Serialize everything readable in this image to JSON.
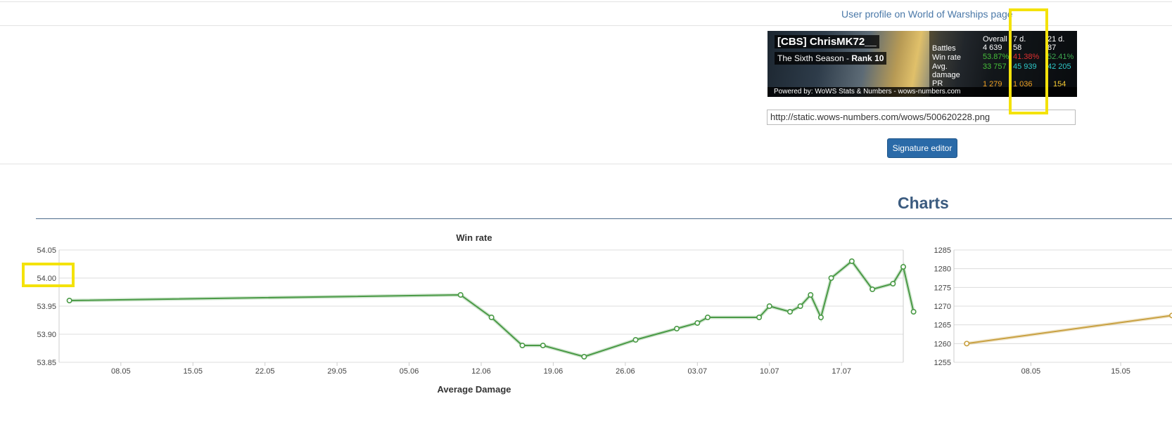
{
  "profile_link": "User profile on World of Warships page",
  "signature": {
    "player_name": "[CBS] ChrisMK72__",
    "season_prefix": "The Sixth Season - ",
    "season_rank": "Rank 10",
    "powered_by": "Powered by: WoWS Stats & Numbers - wows-numbers.com",
    "columns": [
      "Overall",
      "7 d.",
      "21 d."
    ],
    "rows": [
      {
        "label": "Battles",
        "values": [
          "4 639",
          "58",
          "87"
        ]
      },
      {
        "label": "Win rate",
        "values": [
          "53.87%",
          "41.38%",
          "52.41%"
        ]
      },
      {
        "label": "Avg.",
        "label2": "damage",
        "values": [
          "33 757",
          "45 939",
          "42 205"
        ]
      },
      {
        "label": "PR",
        "values": [
          "1 279",
          "1 036",
          "154"
        ]
      }
    ]
  },
  "signature_url": "http://static.wows-numbers.com/wows/500620228.png",
  "signature_editor_label": "Signature editor",
  "charts_heading": "Charts",
  "next_chart_title": "Average Damage",
  "chart_data": [
    {
      "type": "line",
      "title": "Win rate",
      "xlabel": "",
      "ylabel": "",
      "ylim": [
        53.85,
        54.05
      ],
      "yticks": [
        "53.85",
        "53.90",
        "53.95",
        "54.00",
        "54.05"
      ],
      "xlim": [
        "2016-05-02",
        "2016-07-23"
      ],
      "xticks": [
        {
          "date": "2016-05-08",
          "label": "08.05"
        },
        {
          "date": "2016-05-15",
          "label": "15.05"
        },
        {
          "date": "2016-05-22",
          "label": "22.05"
        },
        {
          "date": "2016-05-29",
          "label": "29.05"
        },
        {
          "date": "2016-06-05",
          "label": "05.06"
        },
        {
          "date": "2016-06-12",
          "label": "12.06"
        },
        {
          "date": "2016-06-19",
          "label": "19.06"
        },
        {
          "date": "2016-06-26",
          "label": "26.06"
        },
        {
          "date": "2016-07-03",
          "label": "03.07"
        },
        {
          "date": "2016-07-10",
          "label": "10.07"
        },
        {
          "date": "2016-07-17",
          "label": "17.07"
        }
      ],
      "grid": true,
      "color": "#4a9a46",
      "series": [
        {
          "points": [
            {
              "x": "2016-05-03",
              "y": 53.96
            },
            {
              "x": "2016-06-10",
              "y": 53.97
            },
            {
              "x": "2016-06-13",
              "y": 53.93
            },
            {
              "x": "2016-06-16",
              "y": 53.88
            },
            {
              "x": "2016-06-18",
              "y": 53.88
            },
            {
              "x": "2016-06-22",
              "y": 53.86
            },
            {
              "x": "2016-06-27",
              "y": 53.89
            },
            {
              "x": "2016-07-01",
              "y": 53.91
            },
            {
              "x": "2016-07-03",
              "y": 53.92
            },
            {
              "x": "2016-07-04",
              "y": 53.93
            },
            {
              "x": "2016-07-09",
              "y": 53.93
            },
            {
              "x": "2016-07-10",
              "y": 53.95
            },
            {
              "x": "2016-07-12",
              "y": 53.94
            },
            {
              "x": "2016-07-13",
              "y": 53.95
            },
            {
              "x": "2016-07-14",
              "y": 53.97
            },
            {
              "x": "2016-07-15",
              "y": 53.93
            },
            {
              "x": "2016-07-16",
              "y": 54.0
            },
            {
              "x": "2016-07-18",
              "y": 54.03
            },
            {
              "x": "2016-07-20",
              "y": 53.98
            },
            {
              "x": "2016-07-22",
              "y": 53.99
            },
            {
              "x": "2016-07-23",
              "y": 54.02
            },
            {
              "x": "2016-07-24",
              "y": 53.94
            }
          ]
        }
      ]
    },
    {
      "type": "line",
      "title": "",
      "xlabel": "",
      "ylabel": "",
      "ylim": [
        1255,
        1285
      ],
      "yticks": [
        "1255",
        "1260",
        "1265",
        "1270",
        "1275",
        "1280",
        "1285"
      ],
      "xlim": [
        "2016-05-02",
        "2016-05-19"
      ],
      "xticks": [
        {
          "date": "2016-05-08",
          "label": "08.05"
        },
        {
          "date": "2016-05-15",
          "label": "15.05"
        }
      ],
      "grid": true,
      "color": "#c8a040",
      "series": [
        {
          "points": [
            {
              "x": "2016-05-03",
              "y": 1260
            },
            {
              "x": "2016-05-19",
              "y": 1267.5
            }
          ]
        }
      ]
    }
  ]
}
